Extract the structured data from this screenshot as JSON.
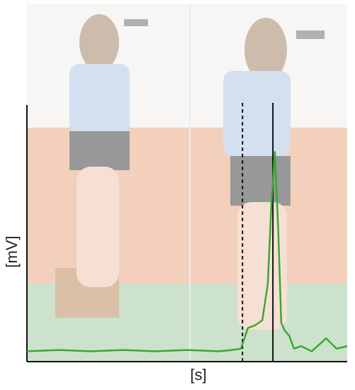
{
  "chart_data": {
    "type": "line",
    "y_label": "[mV]",
    "x_label": "[s]",
    "xlim": [
      0,
      100
    ],
    "ylim": [
      0,
      1
    ],
    "x": [
      0,
      10,
      20,
      30,
      40,
      50,
      60,
      64,
      66.8,
      69,
      71.2,
      73.5,
      75.2,
      76.3,
      77.4,
      78.5,
      79.4,
      80.5,
      81.9,
      83.4,
      85.6,
      88.9,
      93.4,
      96.7,
      100
    ],
    "series": [
      {
        "color": "#3aa832",
        "values": [
          0.04,
          0.045,
          0.04,
          0.045,
          0.04,
          0.045,
          0.04,
          0.045,
          0.05,
          0.13,
          0.14,
          0.16,
          0.3,
          0.6,
          0.81,
          0.5,
          0.15,
          0.12,
          0.1,
          0.05,
          0.06,
          0.04,
          0.09,
          0.05,
          0.06
        ]
      }
    ],
    "events": [
      {
        "x": 67.3,
        "style": "dashed"
      },
      {
        "x": 76.8,
        "style": "solid"
      }
    ]
  }
}
